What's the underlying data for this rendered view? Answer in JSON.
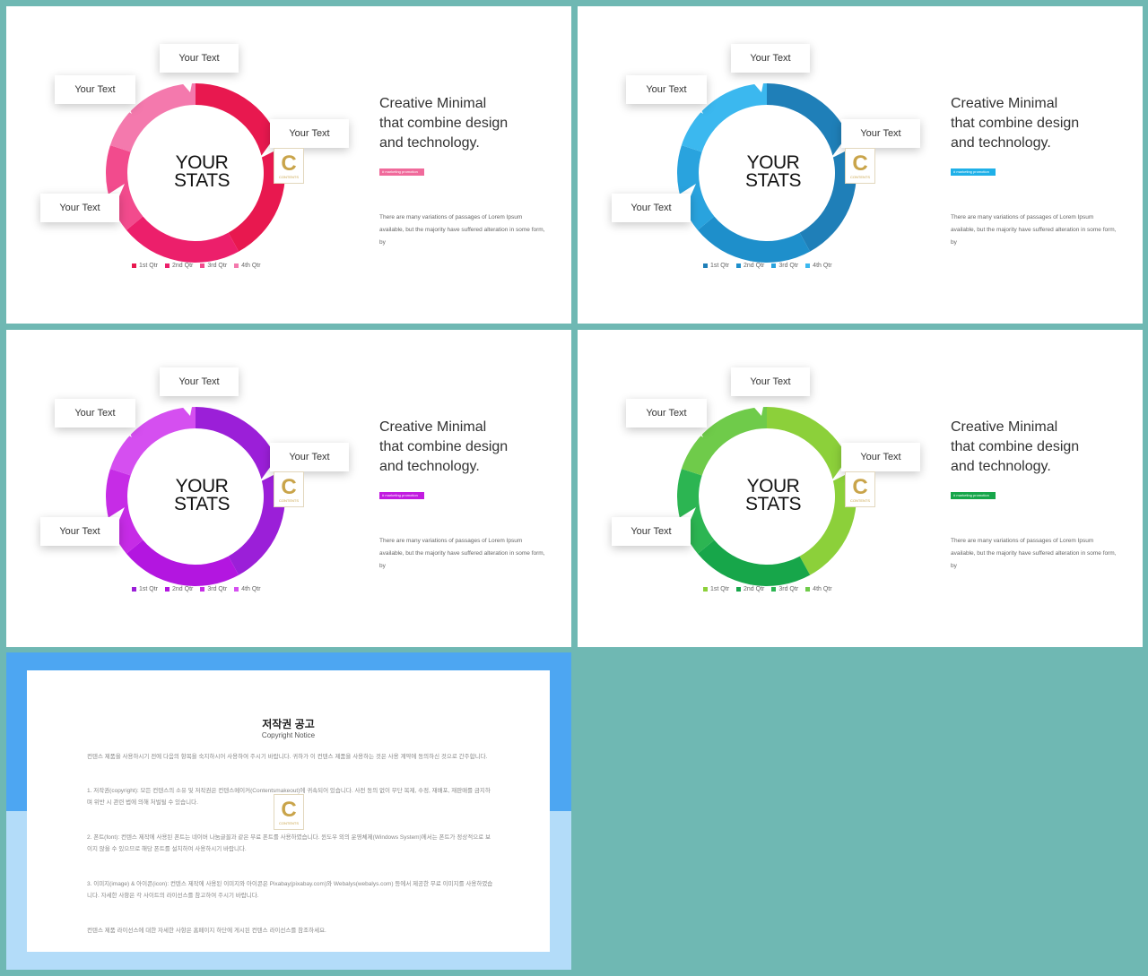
{
  "slides": [
    {
      "palette": [
        "#e8184f",
        "#ec1f6b",
        "#f24b8d",
        "#f479ad"
      ],
      "ring_slices": [
        0.42,
        0.22,
        0.16,
        0.2
      ],
      "tag_color": "#f06a9b",
      "center": {
        "line1": "YOUR",
        "line2": "STATS"
      },
      "callouts": [
        "Your Text",
        "Your Text",
        "Your Text",
        "Your Text"
      ],
      "heading": [
        "Creative Minimal",
        "that combine design",
        "and technology."
      ],
      "tag": "# marketing promotion",
      "body": "There are many variations of passages of Lorem Ipsum available, but the majority have suffered alteration in some form, by",
      "legend": [
        "1st Qtr",
        "2nd Qtr",
        "3rd Qtr",
        "4th Qtr"
      ],
      "logo": {
        "mark": "C",
        "text": "CONTENTS"
      }
    },
    {
      "palette": [
        "#1f7fb8",
        "#1e8fcb",
        "#29a3de",
        "#3bb8ef"
      ],
      "ring_slices": [
        0.42,
        0.22,
        0.16,
        0.2
      ],
      "tag_color": "#1fb0e8",
      "center": {
        "line1": "YOUR",
        "line2": "STATS"
      },
      "callouts": [
        "Your Text",
        "Your Text",
        "Your Text",
        "Your Text"
      ],
      "heading": [
        "Creative Minimal",
        "that combine design",
        "and technology."
      ],
      "tag": "# marketing promotion",
      "body": "There are many variations of passages of Lorem Ipsum available, but the majority have suffered alteration in some form, by",
      "legend": [
        "1st Qtr",
        "2nd Qtr",
        "3rd Qtr",
        "4th Qtr"
      ],
      "logo": {
        "mark": "C",
        "text": "CONTENTS"
      }
    },
    {
      "palette": [
        "#9b1fd8",
        "#b316e0",
        "#c62ce6",
        "#d54ff0"
      ],
      "ring_slices": [
        0.42,
        0.22,
        0.16,
        0.2
      ],
      "tag_color": "#c21be0",
      "center": {
        "line1": "YOUR",
        "line2": "STATS"
      },
      "callouts": [
        "Your Text",
        "Your Text",
        "Your Text",
        "Your Text"
      ],
      "heading": [
        "Creative Minimal",
        "that combine design",
        "and technology."
      ],
      "tag": "# marketing promotion",
      "body": "There are many variations of passages of Lorem Ipsum available, but the majority have suffered alteration in some form, by",
      "legend": [
        "1st Qtr",
        "2nd Qtr",
        "3rd Qtr",
        "4th Qtr"
      ],
      "logo": {
        "mark": "C",
        "text": "CONTENTS"
      }
    },
    {
      "palette": [
        "#8cd03a",
        "#17a64a",
        "#2cb552",
        "#6fcb4a"
      ],
      "ring_slices": [
        0.42,
        0.22,
        0.16,
        0.2
      ],
      "tag_color": "#17a64a",
      "center": {
        "line1": "YOUR",
        "line2": "STATS"
      },
      "callouts": [
        "Your Text",
        "Your Text",
        "Your Text",
        "Your Text"
      ],
      "heading": [
        "Creative Minimal",
        "that combine design",
        "and technology."
      ],
      "tag": "# marketing promotion",
      "body": "There are many variations of passages of Lorem Ipsum available, but the majority have suffered alteration in some form, by",
      "legend": [
        "1st Qtr",
        "2nd Qtr",
        "3rd Qtr",
        "4th Qtr"
      ],
      "logo": {
        "mark": "C",
        "text": "CONTENTS"
      }
    }
  ],
  "copyright": {
    "title": "저작권 공고",
    "subtitle": "Copyright Notice",
    "paragraphs": [
      "컨텐스 제품을 사용하시기 전에 다음의 항목을 숙지하시어 사용하여 주시기 바랍니다. 귀하가 이 컨텐스 제품을 사용하는 것은 사용 계약에 동의하신 것으로 간주합니다.",
      "1. 저작권(copyright): 모든 컨텐스의 소유 및 저작권은 컨텐스메이커(Contentsmakeout)에 귀속되어 있습니다. 사전 동의 없이 무단 복제, 수정, 재배포, 재판매를 금지하며 위반 시 관련 법에 의해 처벌될 수 있습니다.",
      "2. 폰트(font): 컨텐스 제작에 사용된 폰트는 네이버 나눔글꼴과 같은 무료 폰트를 사용하였습니다. 윈도우 외의 운영체제(Windows System)에서는 폰트가 정상적으로 보이지 않을 수 있으므로 해당 폰트를 설치하여 사용하시기 바랍니다.",
      "3. 이미지(image) & 아이콘(icon): 컨텐스 제작에 사용된 이미지와 아이콘은 Pixabay(pixabay.com)와 Webalys(webalys.com) 등에서 제공한 무료 이미지를 사용하였습니다. 자세한 사항은 각 사이트의 라이선스를 참고하여 주시기 바랍니다.",
      "컨텐스 제품 라이선스에 대한 자세한 사항은 홈페이지 하단에 게시된 컨텐스 라이선스를 참조하세요."
    ],
    "logo": {
      "mark": "C",
      "text": "CONTENTS"
    }
  }
}
